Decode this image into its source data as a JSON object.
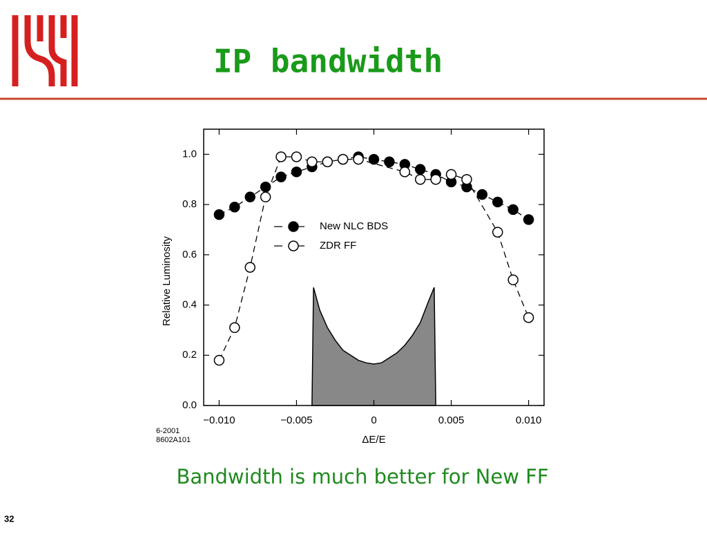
{
  "slide": {
    "title": "IP bandwidth",
    "caption": "Bandwidth is much better for New FF",
    "page": "32"
  },
  "chart_data": {
    "type": "line",
    "xlabel": "ΔE/E",
    "ylabel": "Relative Luminosity",
    "annotations": [
      "6-2001",
      "8602A101"
    ],
    "xlim": [
      -0.011,
      0.011
    ],
    "ylim": [
      0,
      1.1
    ],
    "xticks": [
      {
        "value": -0.01,
        "label": "−0.010"
      },
      {
        "value": -0.005,
        "label": "−0.005"
      },
      0,
      0.005,
      {
        "value": 0.01,
        "label": "0.010"
      }
    ],
    "yticks": [
      {
        "value": 0,
        "label": "0.0"
      },
      0.2,
      0.4,
      0.6,
      0.8,
      {
        "value": 1,
        "label": "1.0"
      }
    ],
    "legend": "center",
    "series": [
      {
        "name": "New NLC BDS",
        "marker": "filled",
        "color": "#000000",
        "x": [
          -0.01,
          -0.009,
          -0.008,
          -0.007,
          -0.006,
          -0.005,
          -0.004,
          -0.003,
          -0.002,
          -0.001,
          0,
          0.001,
          0.002,
          0.003,
          0.004,
          0.005,
          0.006,
          0.007,
          0.008,
          0.009,
          0.01
        ],
        "values": [
          0.76,
          0.79,
          0.83,
          0.87,
          0.91,
          0.93,
          0.95,
          0.97,
          0.98,
          0.99,
          0.98,
          0.97,
          0.96,
          0.94,
          0.92,
          0.89,
          0.87,
          0.84,
          0.81,
          0.78,
          0.74
        ]
      },
      {
        "name": "ZDR FF",
        "marker": "open",
        "color": "#000000",
        "x": [
          -0.01,
          -0.009,
          -0.008,
          -0.007,
          -0.006,
          -0.005,
          -0.004,
          -0.003,
          -0.002,
          -0.001,
          0.002,
          0.003,
          0.004,
          0.005,
          0.006,
          0.008,
          0.009,
          0.01
        ],
        "values": [
          0.18,
          0.31,
          0.55,
          0.83,
          0.99,
          0.99,
          0.97,
          0.97,
          0.98,
          0.98,
          0.93,
          0.9,
          0.9,
          0.92,
          0.9,
          0.69,
          0.5,
          0.35
        ]
      },
      {
        "type": "area",
        "color": "#888888",
        "x": [
          -0.004,
          -0.0039,
          -0.0035,
          -0.003,
          -0.0025,
          -0.002,
          -0.0015,
          -0.001,
          -0.0005,
          0,
          0.0005,
          0.001,
          0.0015,
          0.002,
          0.0025,
          0.003,
          0.0035,
          0.0039,
          0.004
        ],
        "values": [
          0,
          0.47,
          0.38,
          0.31,
          0.26,
          0.22,
          0.2,
          0.18,
          0.17,
          0.165,
          0.17,
          0.19,
          0.21,
          0.24,
          0.28,
          0.33,
          0.41,
          0.47,
          0
        ]
      }
    ]
  }
}
